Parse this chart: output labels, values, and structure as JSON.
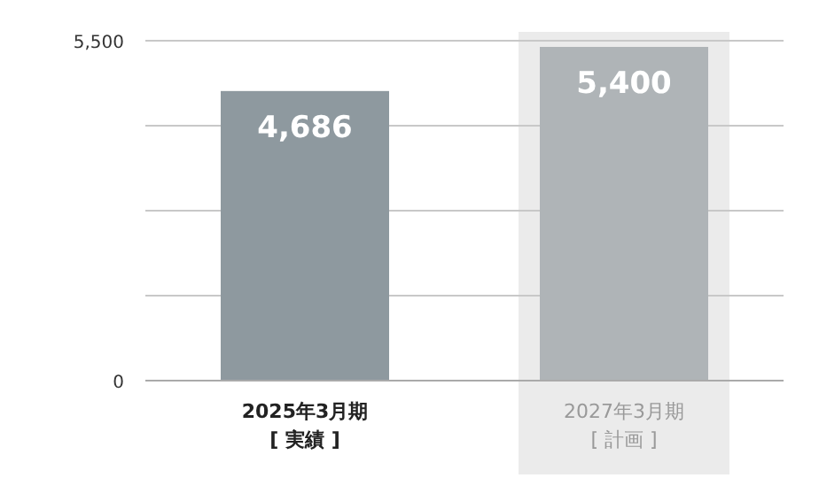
{
  "chart_data": {
    "type": "bar",
    "categories": [
      "2025年3月期\n[ 実績 ]",
      "2027年3月期\n[ 計画 ]"
    ],
    "values": [
      4686,
      5400
    ],
    "colors": [
      "#8e999f",
      "#afb4b7"
    ],
    "value_labels": [
      "4,686",
      "5,400"
    ],
    "ylim": [
      0,
      5500
    ],
    "yticks": [
      0,
      {
        "value": 1375,
        "label": null
      },
      {
        "value": 2750,
        "label": null
      },
      {
        "value": 4125,
        "label": null
      },
      {
        "value": 5500,
        "label": "5,500"
      }
    ],
    "grid": "y",
    "bands": [
      {
        "axis": "x",
        "from": "2027年3月期\n[ 計画 ]",
        "to": "2027年3月期\n[ 計画 ]",
        "color": "#ebebeb"
      }
    ]
  }
}
